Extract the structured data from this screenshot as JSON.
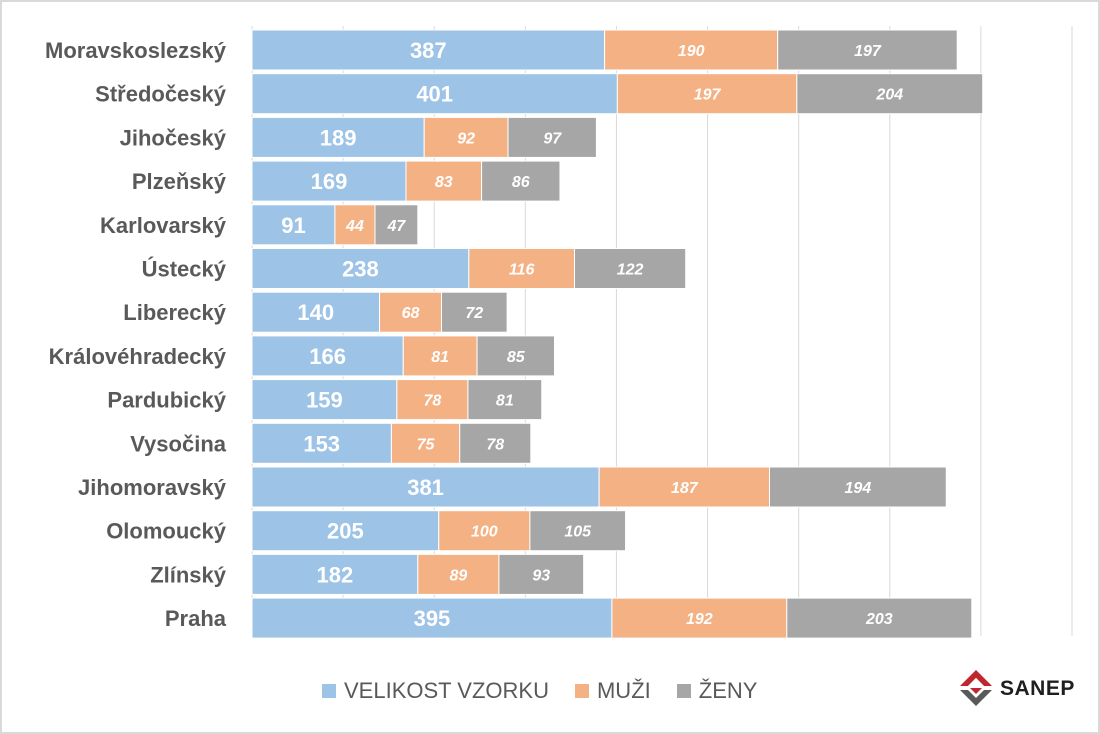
{
  "chart_data": {
    "type": "bar",
    "orientation": "horizontal",
    "stacked": true,
    "categories": [
      "Moravskoslezský",
      "Středočeský",
      "Jihočeský",
      "Plzeňský",
      "Karlovarský",
      "Ústecký",
      "Liberecký",
      "Královéhradecký",
      "Pardubický",
      "Vysočina",
      "Jihomoravský",
      "Olomoucký",
      "Zlínský",
      "Praha"
    ],
    "series": [
      {
        "name": "VELIKOST VZORKU",
        "color": "#9dc3e6",
        "values": [
          387,
          401,
          189,
          169,
          91,
          238,
          140,
          166,
          159,
          153,
          381,
          205,
          182,
          395
        ]
      },
      {
        "name": "MUŽI",
        "color": "#f4b183",
        "values": [
          190,
          197,
          92,
          83,
          44,
          116,
          68,
          81,
          78,
          75,
          187,
          100,
          89,
          192
        ]
      },
      {
        "name": "ŽENY",
        "color": "#a6a6a6",
        "values": [
          197,
          204,
          97,
          86,
          47,
          122,
          72,
          85,
          81,
          78,
          194,
          105,
          93,
          203
        ]
      }
    ],
    "xlim": [
      0,
      900
    ],
    "grid": true,
    "legend_position": "bottom",
    "data_labels": true
  },
  "brand": {
    "logo_text": "SANEP",
    "logo_colors": [
      "#c0272d",
      "#595959"
    ]
  }
}
